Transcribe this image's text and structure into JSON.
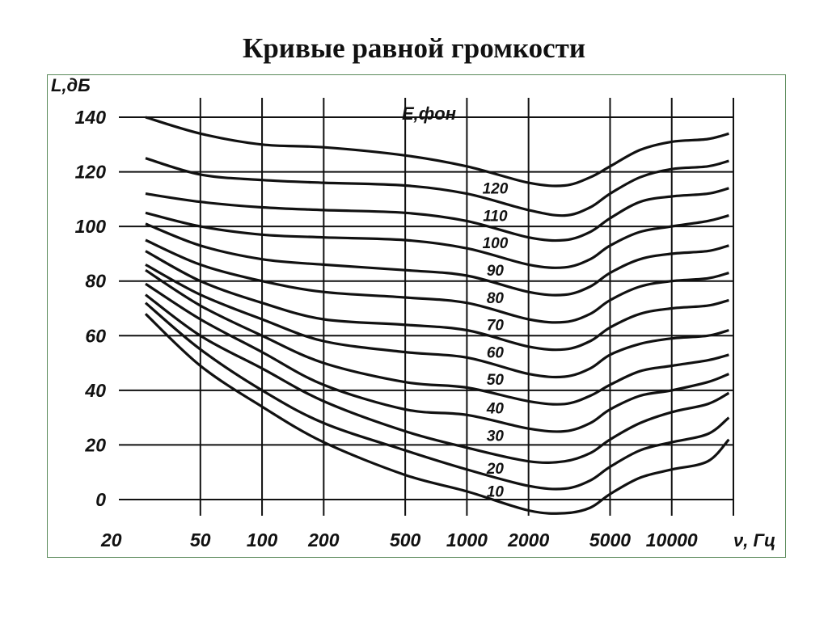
{
  "title": "Кривые равной громкости",
  "colors": {
    "line": "#111111",
    "grid": "#111111",
    "frame": "#5a8a5a"
  },
  "chart_data": {
    "type": "line",
    "title": "Кривые равной громкости",
    "ylabel": "L,дБ",
    "xlabel": "ν, Гц",
    "legend_title": "E,фон",
    "x_scale": "log",
    "xlim": [
      20,
      20000
    ],
    "ylim": [
      -10,
      140
    ],
    "grid": true,
    "x_ticks": [
      20,
      50,
      100,
      200,
      500,
      1000,
      2000,
      5000,
      10000
    ],
    "x_tick_labels": [
      "20",
      "50",
      "100",
      "200",
      "500",
      "1000",
      "2000",
      "5000",
      "10000"
    ],
    "y_ticks": [
      0,
      20,
      40,
      60,
      80,
      100,
      120,
      140
    ],
    "y_tick_labels": [
      "0",
      "20",
      "40",
      "60",
      "80",
      "100",
      "120",
      "140"
    ],
    "x": [
      27,
      50,
      100,
      200,
      500,
      1000,
      2000,
      3000,
      4000,
      5000,
      7000,
      10000,
      15000,
      19000
    ],
    "series": [
      {
        "name": "120",
        "values": [
          140,
          134,
          130,
          129,
          126,
          122,
          116,
          115,
          118,
          122,
          128,
          131,
          132,
          134
        ]
      },
      {
        "name": "110",
        "values": [
          125,
          119,
          117,
          116,
          115,
          112,
          106,
          104,
          107,
          112,
          118,
          121,
          122,
          124
        ]
      },
      {
        "name": "100",
        "values": [
          112,
          109,
          107,
          106,
          105,
          102,
          96,
          95,
          98,
          103,
          109,
          111,
          112,
          114
        ]
      },
      {
        "name": "90",
        "values": [
          105,
          100,
          97,
          96,
          95,
          92,
          86,
          85,
          88,
          93,
          98,
          100,
          102,
          104
        ]
      },
      {
        "name": "80",
        "values": [
          101,
          93,
          88,
          86,
          84,
          82,
          76,
          75,
          78,
          83,
          88,
          90,
          91,
          93
        ]
      },
      {
        "name": "70",
        "values": [
          95,
          86,
          80,
          76,
          74,
          72,
          66,
          65,
          68,
          73,
          78,
          80,
          81,
          83
        ]
      },
      {
        "name": "60",
        "values": [
          91,
          80,
          72,
          66,
          64,
          62,
          56,
          55,
          58,
          63,
          68,
          70,
          71,
          73
        ]
      },
      {
        "name": "50",
        "values": [
          86,
          75,
          66,
          58,
          54,
          52,
          46,
          45,
          48,
          53,
          57,
          59,
          60,
          62
        ]
      },
      {
        "name": "40",
        "values": [
          84,
          71,
          60,
          50,
          43,
          41,
          36,
          35,
          38,
          42,
          47,
          49,
          51,
          53
        ]
      },
      {
        "name": "30",
        "values": [
          79,
          66,
          54,
          42,
          33,
          31,
          26,
          25,
          28,
          33,
          38,
          40,
          43,
          46
        ]
      },
      {
        "name": "20",
        "values": [
          75,
          60,
          48,
          36,
          25,
          19,
          14,
          14,
          17,
          22,
          28,
          32,
          35,
          39
        ]
      },
      {
        "name": "10",
        "values": [
          72,
          55,
          40,
          28,
          18,
          11,
          5,
          4,
          7,
          12,
          18,
          21,
          24,
          30
        ]
      },
      {
        "name": "",
        "values": [
          68,
          49,
          34,
          21,
          9,
          3,
          -4,
          -5,
          -3,
          2,
          8,
          11,
          14,
          22
        ]
      }
    ]
  }
}
